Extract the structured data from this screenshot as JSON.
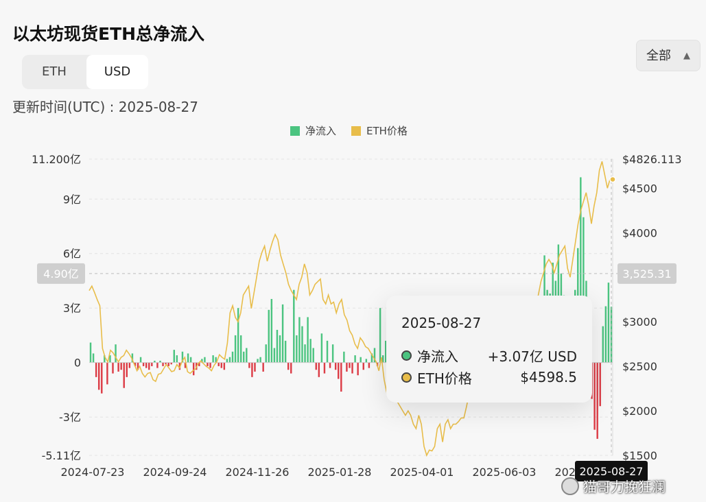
{
  "title": "以太坊现货ETH总净流入",
  "toggle": {
    "eth_label": "ETH",
    "usd_label": "USD"
  },
  "range_select": {
    "value": "全部"
  },
  "updated": "更新时间(UTC) : 2025-08-27",
  "legend": [
    {
      "label": "净流入",
      "color": "#4bc480"
    },
    {
      "label": "ETH价格",
      "color": "#e8bd4a"
    }
  ],
  "colors": {
    "inflow": "#4bc480",
    "outflow": "#dc3c46",
    "price": "#e8bd4a"
  },
  "tooltip": {
    "date": "2025-08-27",
    "inflow_label": "净流入",
    "inflow_value": "+3.07亿 USD",
    "price_label": "ETH价格",
    "price_value": "$4598.5"
  },
  "crosshair": {
    "y_label": "4.90亿",
    "price_label": "3,525.31",
    "x_label": "2025-08-27"
  },
  "watermark": "猫哥力挽狂澜",
  "chart_data": {
    "type": "bar+line",
    "x_ticks": [
      "2024-07-23",
      "2024-09-24",
      "2024-11-26",
      "2025-01-28",
      "2025-04-01",
      "2025-06-03",
      "2025-08-27"
    ],
    "y_left": {
      "min": -5.11,
      "max": 11.2,
      "ticks": [
        {
          "v": 11.2,
          "label": "11.200亿"
        },
        {
          "v": 9,
          "label": "9亿"
        },
        {
          "v": 6,
          "label": "6亿"
        },
        {
          "v": 3,
          "label": "3亿"
        },
        {
          "v": 0,
          "label": "0"
        },
        {
          "v": -3,
          "label": "-3亿"
        },
        {
          "v": -5.11,
          "label": "-5.11亿"
        }
      ]
    },
    "y_right": {
      "min": 1500,
      "max": 4826.113,
      "ticks": [
        {
          "v": 4826.113,
          "label": "$4826.113"
        },
        {
          "v": 4500,
          "label": "$4500"
        },
        {
          "v": 4000,
          "label": "$4000"
        },
        {
          "v": 3000,
          "label": "$3000"
        },
        {
          "v": 2500,
          "label": "$2500"
        },
        {
          "v": 2000,
          "label": "$2000"
        },
        {
          "v": 1500,
          "label": "$1500"
        }
      ]
    },
    "series": [
      {
        "name": "净流入",
        "type": "bar",
        "values": [
          1.1,
          0.5,
          -0.8,
          -1.5,
          -1.7,
          0.4,
          -1.2,
          0.4,
          -0.6,
          1.0,
          -0.5,
          -0.4,
          -1.4,
          -0.8,
          -0.3,
          0.5,
          -0.2,
          -0.4,
          0.3,
          -0.2,
          -0.3,
          -0.4,
          -0.2,
          0.1,
          -0.3,
          0.1,
          -0.2,
          -0.1,
          -0.2,
          -0.1,
          0.7,
          0.4,
          -0.4,
          0.6,
          -0.3,
          0.5,
          0.3,
          -0.7,
          -0.4,
          -0.2,
          0.2,
          0.3,
          -0.2,
          -0.3,
          0.4,
          0.3,
          -0.2,
          -0.3,
          -0.4,
          0.2,
          0.3,
          0.6,
          1.5,
          3.0,
          1.5,
          0.6,
          0.8,
          -0.3,
          -0.8,
          -0.5,
          0.2,
          0.3,
          -0.5,
          1.0,
          2.9,
          3.5,
          0.8,
          1.8,
          1.5,
          3.2,
          1.2,
          -0.4,
          -0.6,
          4.0,
          1.5,
          2.5,
          2.0,
          1.0,
          2.5,
          1.3,
          0.8,
          -0.4,
          -0.8,
          1.6,
          -0.6,
          1.2,
          -0.3,
          1.0,
          -0.4,
          -0.9,
          -1.6,
          0.6,
          -0.5,
          -0.3,
          -0.6,
          0.4,
          -0.7,
          0.3,
          -0.4,
          0.2,
          -0.3,
          0.5,
          0.8,
          -0.2,
          3.0,
          0.4,
          1.2,
          -0.6,
          -0.3,
          0.8,
          -0.2,
          -0.4,
          0.3,
          -0.2,
          -0.3,
          0.2,
          0.5,
          -0.8,
          -0.9,
          -0.8,
          -1.3,
          -0.6,
          -1.7,
          -1.0,
          -1.3,
          -0.7,
          -0.6,
          -0.3,
          0.4,
          -0.3,
          -0.5,
          0.2,
          -0.4,
          -0.2,
          0.3,
          -0.3,
          -0.2,
          0.4,
          -0.2,
          0.3,
          -0.3,
          0.5,
          -0.2,
          0.3,
          0.2,
          -0.3,
          0.4,
          0.6,
          0.2,
          -0.2,
          0.3,
          0.6,
          0.4,
          -0.3,
          0.7,
          0.5,
          0.8,
          0.3,
          1.2,
          0.6,
          0.4,
          0.9,
          2.2,
          5.9,
          4.0,
          3.8,
          5.5,
          4.5,
          6.5,
          4.9,
          3.7,
          2.0,
          3.0,
          2.5,
          4.0,
          6.3,
          10.2,
          8.0,
          4.5,
          -0.8,
          -2.0,
          -3.7,
          -4.2,
          -2.4,
          2.0,
          3.1,
          4.4,
          3.07
        ]
      },
      {
        "name": "ETH价格",
        "type": "line",
        "values": [
          3350,
          3400,
          3330,
          3250,
          3180,
          2700,
          2600,
          2550,
          2680,
          2650,
          2600,
          2550,
          2600,
          2620,
          2680,
          2640,
          2590,
          2520,
          2450,
          2500,
          2420,
          2380,
          2420,
          2430,
          2350,
          2330,
          2410,
          2420,
          2470,
          2520,
          2480,
          2440,
          2450,
          2520,
          2480,
          2560,
          2600,
          2440,
          2420,
          2450,
          2470,
          2530,
          2560,
          2530,
          2500,
          2480,
          2450,
          2510,
          2550,
          2630,
          2600,
          2580,
          2760,
          3100,
          3180,
          3050,
          3000,
          3100,
          3300,
          3350,
          3400,
          3150,
          3320,
          3500,
          3680,
          3780,
          3850,
          3680,
          3800,
          3900,
          3980,
          3920,
          3750,
          3650,
          3550,
          3420,
          3350,
          3300,
          3250,
          3420,
          3500,
          3650,
          3550,
          3300,
          3350,
          3420,
          3450,
          3480,
          3250,
          3200,
          3300,
          3200,
          3220,
          3100,
          3200,
          3250,
          3080,
          3020,
          2900,
          2850,
          2750,
          2700,
          2820,
          2780,
          2720,
          2700,
          2650,
          2600,
          2550,
          2450,
          2600,
          2350,
          2200,
          2250,
          2400,
          2250,
          2100,
          2050,
          2000,
          1950,
          2000,
          1950,
          1850,
          1800,
          1950,
          1850,
          1600,
          1500,
          1560,
          1550,
          1600,
          1800,
          1850,
          1650,
          1850,
          1900,
          1800,
          1850,
          1850,
          1880,
          1920,
          1920,
          2050,
          2200,
          2400,
          2450,
          2500,
          2550,
          2600,
          2650,
          2580,
          2520,
          2450,
          2500,
          2550,
          2600,
          2700,
          2520,
          2550,
          2600,
          2500,
          2550,
          2600,
          2650,
          2700,
          2750,
          2850,
          3000,
          3200,
          3300,
          3450,
          3550,
          3650,
          3700,
          3650,
          3550,
          3650,
          3750,
          3800,
          3850,
          3600,
          3500,
          3700,
          3900,
          4100,
          4250,
          4350,
          4450,
          4300,
          4100,
          4300,
          4450,
          4700,
          4800,
          4650,
          4500,
          4600,
          4598.5
        ]
      }
    ],
    "grid": "dashed-horizontal"
  }
}
